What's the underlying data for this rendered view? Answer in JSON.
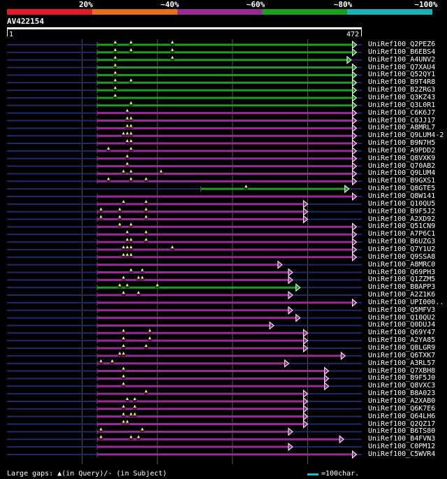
{
  "colors": {
    "bg": "#000000",
    "scale": [
      "#e31a2a",
      "#e0701c",
      "#9b2a99",
      "#1e9e1e",
      "#16b3b8"
    ],
    "hit_green": "#1e9e1e",
    "hit_purple": "#9b2a99",
    "unaligned": "#1d2a6e",
    "gridline": "#555555",
    "query_bar": "#ffffff",
    "legend_bar": "#22bbcc"
  },
  "scale": {
    "labels": [
      "20%",
      "~40%",
      "~60%",
      "~80%",
      "~100%"
    ]
  },
  "query": {
    "id": "AV422154",
    "start": "1",
    "end": "472",
    "length": 472
  },
  "hits": [
    {
      "label": "UniRef100_Q2PEZ6",
      "color": "green",
      "start": 120,
      "end": 465,
      "gaps": [
        144,
        165,
        220
      ]
    },
    {
      "label": "UniRef100_B6EBS4",
      "color": "green",
      "start": 120,
      "end": 465,
      "gaps": [
        144,
        165,
        220
      ]
    },
    {
      "label": "UniRef100_A4UNV2",
      "color": "green",
      "start": 120,
      "end": 458,
      "gaps": [
        144,
        220
      ]
    },
    {
      "label": "UniRef100_Q7XAU4",
      "color": "green",
      "start": 120,
      "end": 465,
      "gaps": [
        144
      ]
    },
    {
      "label": "UniRef100_Q52QY1",
      "color": "green",
      "start": 120,
      "end": 465,
      "gaps": [
        144
      ]
    },
    {
      "label": "UniRef100_B9T4R8",
      "color": "green",
      "start": 120,
      "end": 465,
      "gaps": [
        144,
        165
      ]
    },
    {
      "label": "UniRef100_B2ZRG3",
      "color": "green",
      "start": 120,
      "end": 465,
      "gaps": [
        144
      ]
    },
    {
      "label": "UniRef100_Q3KZ43",
      "color": "green",
      "start": 120,
      "end": 465,
      "gaps": [
        144
      ]
    },
    {
      "label": "UniRef100_Q3L0R1",
      "color": "green",
      "start": 120,
      "end": 465,
      "gaps": [
        165
      ]
    },
    {
      "label": "UniRef100_C6K6J7",
      "color": "purple",
      "start": 120,
      "end": 465,
      "gaps": [
        160
      ]
    },
    {
      "label": "UniRef100_C0JJ17",
      "color": "purple",
      "start": 120,
      "end": 465,
      "gaps": [
        160,
        165
      ]
    },
    {
      "label": "UniRef100_A8MRL7",
      "color": "purple",
      "start": 120,
      "end": 465,
      "gaps": [
        160,
        165
      ]
    },
    {
      "label": "UniRef100_Q9LUM4-2",
      "color": "purple",
      "start": 120,
      "end": 465,
      "gaps": [
        155,
        160,
        165
      ]
    },
    {
      "label": "UniRef100_B9N7H5",
      "color": "purple",
      "start": 120,
      "end": 465,
      "gaps": [
        160,
        165
      ]
    },
    {
      "label": "UniRef100_A9PDD2",
      "color": "purple",
      "start": 120,
      "end": 465,
      "gaps": [
        135,
        165
      ]
    },
    {
      "label": "UniRef100_Q8VXK9",
      "color": "purple",
      "start": 120,
      "end": 465,
      "gaps": [
        160
      ]
    },
    {
      "label": "UniRef100_Q70AB2",
      "color": "purple",
      "start": 120,
      "end": 465,
      "gaps": [
        160
      ]
    },
    {
      "label": "UniRef100_Q9LUM4",
      "color": "purple",
      "start": 120,
      "end": 465,
      "gaps": [
        155,
        165,
        205
      ]
    },
    {
      "label": "UniRef100_B9GXS1",
      "color": "purple",
      "start": 120,
      "end": 465,
      "gaps": [
        135,
        165,
        185
      ]
    },
    {
      "label": "UniRef100_Q8GTE5",
      "color": "green",
      "start": 258,
      "end": 455,
      "gaps": [
        318
      ]
    },
    {
      "label": "UniRef100_Q8W141",
      "color": "purple",
      "start": 120,
      "end": 465,
      "gaps": []
    },
    {
      "label": "UniRef100_Q10QU5",
      "color": "purple",
      "start": 120,
      "end": 400,
      "gaps": [
        155,
        185
      ]
    },
    {
      "label": "UniRef100_B9F5J2",
      "color": "purple",
      "start": 120,
      "end": 400,
      "gaps": [
        125,
        150,
        185
      ]
    },
    {
      "label": "UniRef100_A2XD92",
      "color": "purple",
      "start": 120,
      "end": 400,
      "gaps": [
        125,
        150,
        185
      ]
    },
    {
      "label": "UniRef100_Q51CN9",
      "color": "purple",
      "start": 120,
      "end": 465,
      "gaps": [
        150,
        165
      ]
    },
    {
      "label": "UniRef100_A7P6C1",
      "color": "purple",
      "start": 120,
      "end": 465,
      "gaps": [
        160,
        185
      ]
    },
    {
      "label": "UniRef100_B6UZG3",
      "color": "purple",
      "start": 120,
      "end": 465,
      "gaps": [
        160,
        165,
        185
      ]
    },
    {
      "label": "UniRef100_Q7Y1U2",
      "color": "purple",
      "start": 120,
      "end": 465,
      "gaps": [
        155,
        160,
        165,
        220
      ]
    },
    {
      "label": "UniRef100_Q9SSA8",
      "color": "purple",
      "start": 120,
      "end": 465,
      "gaps": [
        155,
        160,
        165
      ]
    },
    {
      "label": "UniRef100_A8MRC0",
      "color": "purple",
      "start": 120,
      "end": 366,
      "gaps": []
    },
    {
      "label": "UniRef100_Q69PH3",
      "color": "purple",
      "start": 120,
      "end": 380,
      "gaps": [
        165,
        180
      ]
    },
    {
      "label": "UniRef100_Q1ZZM5",
      "color": "purple",
      "start": 120,
      "end": 380,
      "gaps": [
        155,
        175,
        180
      ]
    },
    {
      "label": "UniRef100_B8APP3",
      "color": "green",
      "start": 120,
      "end": 390,
      "gaps": [
        150,
        160,
        200
      ]
    },
    {
      "label": "UniRef100_A2Z1K6",
      "color": "purple",
      "start": 120,
      "end": 380,
      "gaps": [
        155,
        175
      ]
    },
    {
      "label": "UniRef100_UPI000..",
      "color": "purple",
      "start": 120,
      "end": 465,
      "gaps": []
    },
    {
      "label": "UniRef100_Q5MFV3",
      "color": "purple",
      "start": 120,
      "end": 380,
      "gaps": []
    },
    {
      "label": "UniRef100_Q10QU2",
      "color": "purple",
      "start": 120,
      "end": 390,
      "gaps": []
    },
    {
      "label": "UniRef100_Q0DUJ4",
      "color": "purple",
      "start": 120,
      "end": 355,
      "gaps": []
    },
    {
      "label": "UniRef100_Q69Y47",
      "color": "purple",
      "start": 120,
      "end": 400,
      "gaps": [
        155,
        190
      ]
    },
    {
      "label": "UniRef100_A2YA85",
      "color": "purple",
      "start": 120,
      "end": 400,
      "gaps": [
        155,
        190
      ]
    },
    {
      "label": "UniRef100_Q8LGR9",
      "color": "purple",
      "start": 120,
      "end": 400,
      "gaps": [
        155,
        185
      ]
    },
    {
      "label": "UniRef100_Q6TXK7",
      "color": "purple",
      "start": 120,
      "end": 450,
      "gaps": [
        150,
        155
      ]
    },
    {
      "label": "UniRef100_A3RL57",
      "color": "purple",
      "start": 120,
      "end": 375,
      "gaps": [
        125,
        140
      ]
    },
    {
      "label": "UniRef100_Q7XBH8",
      "color": "purple",
      "start": 120,
      "end": 428,
      "gaps": [
        155
      ]
    },
    {
      "label": "UniRef100_B9F5J0",
      "color": "purple",
      "start": 120,
      "end": 428,
      "gaps": [
        155
      ]
    },
    {
      "label": "UniRef100_Q8VXC3",
      "color": "purple",
      "start": 120,
      "end": 428,
      "gaps": [
        155
      ]
    },
    {
      "label": "UniRef100_B8A023",
      "color": "purple",
      "start": 120,
      "end": 400,
      "gaps": [
        185
      ]
    },
    {
      "label": "UniRef100_A2XAB0",
      "color": "purple",
      "start": 120,
      "end": 400,
      "gaps": [
        160,
        170
      ]
    },
    {
      "label": "UniRef100_Q6K7E6",
      "color": "purple",
      "start": 120,
      "end": 400,
      "gaps": [
        155,
        170
      ]
    },
    {
      "label": "UniRef100_Q64LH6",
      "color": "purple",
      "start": 120,
      "end": 400,
      "gaps": [
        155,
        165,
        170
      ]
    },
    {
      "label": "UniRef100_Q2QZ17",
      "color": "purple",
      "start": 120,
      "end": 400,
      "gaps": [
        155,
        160
      ]
    },
    {
      "label": "UniRef100_B6TS80",
      "color": "purple",
      "start": 120,
      "end": 380,
      "gaps": [
        125,
        180
      ]
    },
    {
      "label": "UniRef100_B4FVN3",
      "color": "purple",
      "start": 120,
      "end": 448,
      "gaps": [
        125,
        165,
        175
      ]
    },
    {
      "label": "UniRef100_C0PM12",
      "color": "purple",
      "start": 120,
      "end": 380,
      "gaps": []
    },
    {
      "label": "UniRef100_C5WVR4",
      "color": "purple",
      "start": 120,
      "end": 465,
      "gaps": []
    }
  ],
  "footer": {
    "text": "Large gaps: ▲(in Query)/- (in Subject)",
    "legend": "=100char."
  }
}
